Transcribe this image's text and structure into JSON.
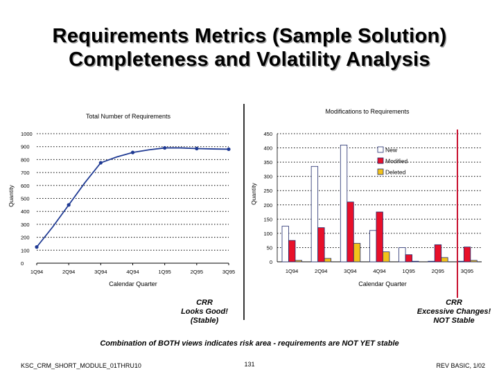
{
  "title": {
    "line1": "Requirements Metrics (Sample Solution)",
    "line2": "Completeness and Volatility Analysis"
  },
  "chart_data": [
    {
      "type": "line",
      "title": "Total Number of Requirements",
      "xlabel": "Calendar Quarter",
      "ylabel": "Quantity",
      "categories": [
        "1Q94",
        "2Q94",
        "3Q94",
        "4Q94",
        "1Q95",
        "2Q95",
        "3Q95"
      ],
      "x": [
        0,
        0.5,
        1,
        1.5,
        2,
        2.5,
        3,
        3.5,
        4,
        4.5,
        5,
        5.5,
        6
      ],
      "values": [
        125,
        280,
        450,
        620,
        775,
        820,
        855,
        875,
        890,
        890,
        885,
        882,
        880
      ],
      "ylim": [
        0,
        1000
      ],
      "yticks": [
        0,
        100,
        200,
        300,
        400,
        500,
        600,
        700,
        800,
        900,
        1000
      ],
      "ytick_labels": [
        "0",
        "100",
        "200",
        "300",
        "400",
        "500",
        "600",
        "700",
        "800",
        "900",
        "1000"
      ],
      "grid": true,
      "color": "#1f3a93"
    },
    {
      "type": "bar",
      "title": "Modifications to Requirements",
      "xlabel": "Calendar Quarter",
      "ylabel": "Quantity",
      "categories": [
        "1Q94",
        "2Q94",
        "3Q94",
        "4Q94",
        "1Q95",
        "2Q95",
        "3Q95"
      ],
      "series": [
        {
          "name": "New",
          "values": [
            125,
            335,
            410,
            110,
            50,
            2,
            2
          ],
          "color": "#ffffff"
        },
        {
          "name": "Modified",
          "values": [
            75,
            120,
            210,
            175,
            25,
            60,
            52
          ],
          "color": "#e8102a"
        },
        {
          "name": "Deleted",
          "values": [
            5,
            12,
            65,
            35,
            2,
            15,
            5
          ],
          "color": "#f2c21a"
        }
      ],
      "ylim": [
        0,
        450
      ],
      "yticks": [
        0,
        50,
        100,
        150,
        200,
        250,
        300,
        350,
        400,
        450
      ],
      "ytick_labels": [
        "0",
        "50",
        "100",
        "150",
        "200",
        "250",
        "300",
        "350",
        "400",
        "450"
      ],
      "grid": true,
      "legend_position": "top-right"
    }
  ],
  "notes": {
    "left": [
      "CRR",
      "Looks Good!",
      "(Stable)"
    ],
    "right": [
      "CRR",
      "Excessive Changes!",
      "NOT Stable"
    ],
    "bottom": "Combination of BOTH views indicates risk area - requirements are NOT YET stable"
  },
  "footer": {
    "left": "KSC_CRM_SHORT_MODULE_01THRU10",
    "center": "131",
    "right": "REV BASIC, 1/02"
  },
  "colors": {
    "line": "#1f3a93",
    "divider_left": "#000000",
    "divider_right": "#c8102e",
    "grid": "#000000"
  }
}
